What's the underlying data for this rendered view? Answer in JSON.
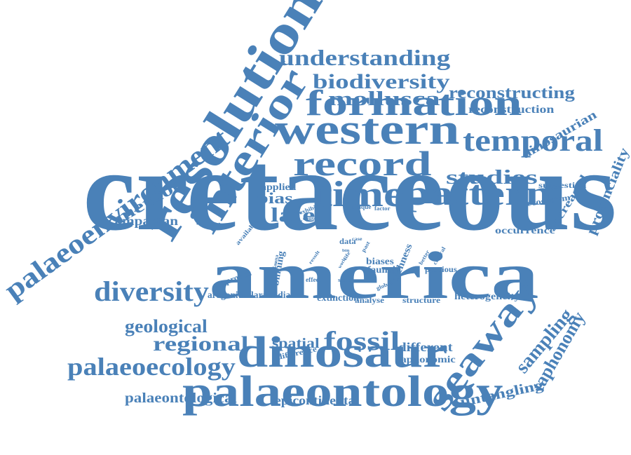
{
  "color": "#4a81b8",
  "words": {
    "cretaceous": "cretaceous",
    "america": "america",
    "palaeontology": "palaeontology",
    "dinosaur": "dinosaur",
    "resolution": "resolution",
    "interior": "interior",
    "western": "western",
    "formation": "formation",
    "record": "record",
    "pattern": "pattern",
    "time": "time",
    "temporal": "temporal",
    "seaway": "seaway",
    "palaeoenvironment": "palaeoenvironment",
    "understanding": "understanding",
    "biodiversity": "biodiversity",
    "mollusca": "mollusca",
    "reconstructing": "reconstructing",
    "reconstruction": "reconstruction",
    "dinosaurian": "dinosaurian",
    "provinciality": "provinciality",
    "studies": "studies",
    "suggestion": "suggestion",
    "ecosystem": "ecosystem",
    "increased": "increased",
    "occurrence": "occurrence",
    "method": "method",
    "campanian": "campanian",
    "applied": "applied",
    "bias": "bias",
    "late": "late",
    "available": "available",
    "exhibit": "exhibit",
    "cause": "cause",
    "unique": "unique",
    "factor": "factor",
    "data": "data",
    "binning": "binning",
    "approach": "approach",
    "biases": "biases",
    "faunal": "faunal",
    "richness": "richness",
    "previous": "previous",
    "better": "better",
    "central": "central",
    "effect": "effect",
    "scale": "scale",
    "global": "global",
    "diversity": "diversity",
    "aragonitic": "aragonitic",
    "laramidia": "laramidia",
    "extinction": "extinction",
    "analyse": "analyse",
    "structure": "structure",
    "heterogeneity": "heterogeneity",
    "geological": "geological",
    "regional": "regional",
    "spatial": "spatial",
    "difference": "difference",
    "fossil": "fossil",
    "different": "different",
    "taphonomic": "taphonomic",
    "sampling": "sampling",
    "taphonomy": "taphonomy",
    "palaeoecology": "palaeoecology",
    "untangling": "untangling",
    "palaeontological": "palaeontological",
    "epicontinental": "epicontinental",
    "fauna": "fauna",
    "result": "result",
    "past": "past",
    "case": "case",
    "work": "work",
    "life": "life",
    "bin": "bin"
  }
}
